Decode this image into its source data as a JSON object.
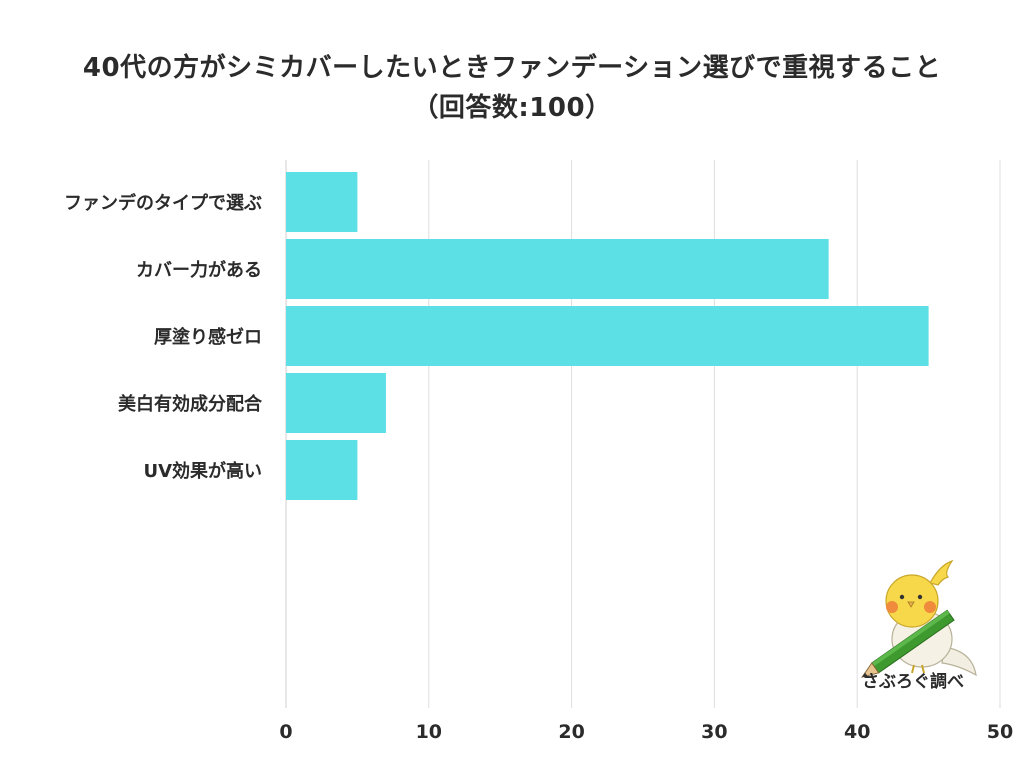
{
  "chart_data": {
    "type": "bar",
    "orientation": "horizontal",
    "title": "40代の方がシミカバーしたいときファンデーション選びで重視すること",
    "subtitle": "（回答数:100）",
    "categories": [
      "ファンデのタイプで選ぶ",
      "カバー力がある",
      "厚塗り感ゼロ",
      "美白有効成分配合",
      "UV効果が高い"
    ],
    "values": [
      5,
      38,
      45,
      7,
      5
    ],
    "xlim": [
      0,
      50
    ],
    "ticks": [
      "0",
      "10",
      "20",
      "30",
      "40",
      "50"
    ],
    "xlabel": "",
    "ylabel": "",
    "grid": "vertical",
    "bar_color": "#5ce0e6"
  },
  "credit": "さぶろぐ調べ"
}
